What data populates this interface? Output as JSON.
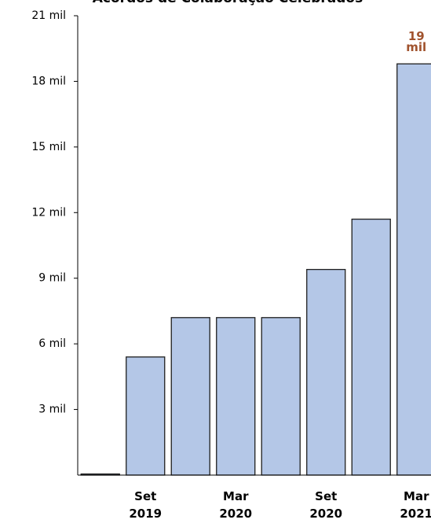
{
  "chart_data": {
    "type": "bar",
    "title": "Acordos de Colaboração Celebrados",
    "categories": [
      null,
      "Set\n2019",
      null,
      "Mar\n2020",
      null,
      "Set\n2020",
      null,
      "Mar\n2021"
    ],
    "values": [
      50,
      5400,
      7200,
      7200,
      7200,
      9400,
      11700,
      18800
    ],
    "value_labels": [
      null,
      null,
      null,
      null,
      null,
      null,
      null,
      "19\nmil"
    ],
    "color": "#b4c7e7",
    "ylim": [
      0,
      21000
    ],
    "yticks": [
      {
        "value": 3000,
        "label": "3 mil"
      },
      {
        "value": 6000,
        "label": "6 mil"
      },
      {
        "value": 9000,
        "label": "9 mil"
      },
      {
        "value": 12000,
        "label": "12 mil"
      },
      {
        "value": 15000,
        "label": "15 mil"
      },
      {
        "value": 18000,
        "label": "18 mil"
      },
      {
        "value": 21000,
        "label": "21 mil"
      }
    ],
    "grid": false
  }
}
